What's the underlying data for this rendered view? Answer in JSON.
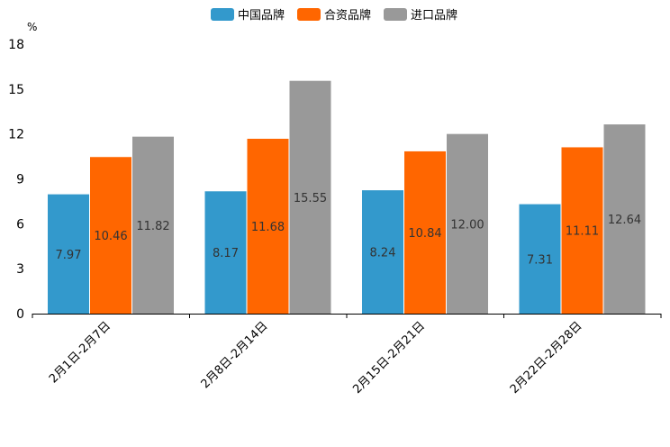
{
  "chart_data": {
    "type": "bar",
    "title": "",
    "xlabel": "",
    "ylabel": "%",
    "ylim": [
      0,
      18
    ],
    "yticks": [
      0,
      3,
      6,
      9,
      12,
      15,
      18
    ],
    "grid": false,
    "legend_position": "top-center",
    "categories": [
      "2月1日-2月7日",
      "2月8日-2月14日",
      "2月15日-2月21日",
      "2月22日-2月28日"
    ],
    "series": [
      {
        "name": "中国品牌",
        "color": "#3399cc",
        "values": [
          7.97,
          8.17,
          8.24,
          7.31
        ],
        "labels": [
          "7.97",
          "8.17",
          "8.24",
          "7.31"
        ]
      },
      {
        "name": "合资品牌",
        "color": "#ff6600",
        "values": [
          10.46,
          11.68,
          10.84,
          11.11
        ],
        "labels": [
          "10.46",
          "11.68",
          "10.84",
          "11.11"
        ]
      },
      {
        "name": "进口品牌",
        "color": "#999999",
        "values": [
          11.82,
          15.55,
          12.0,
          12.64
        ],
        "labels": [
          "11.82",
          "15.55",
          "12.00",
          "12.64"
        ]
      }
    ]
  }
}
